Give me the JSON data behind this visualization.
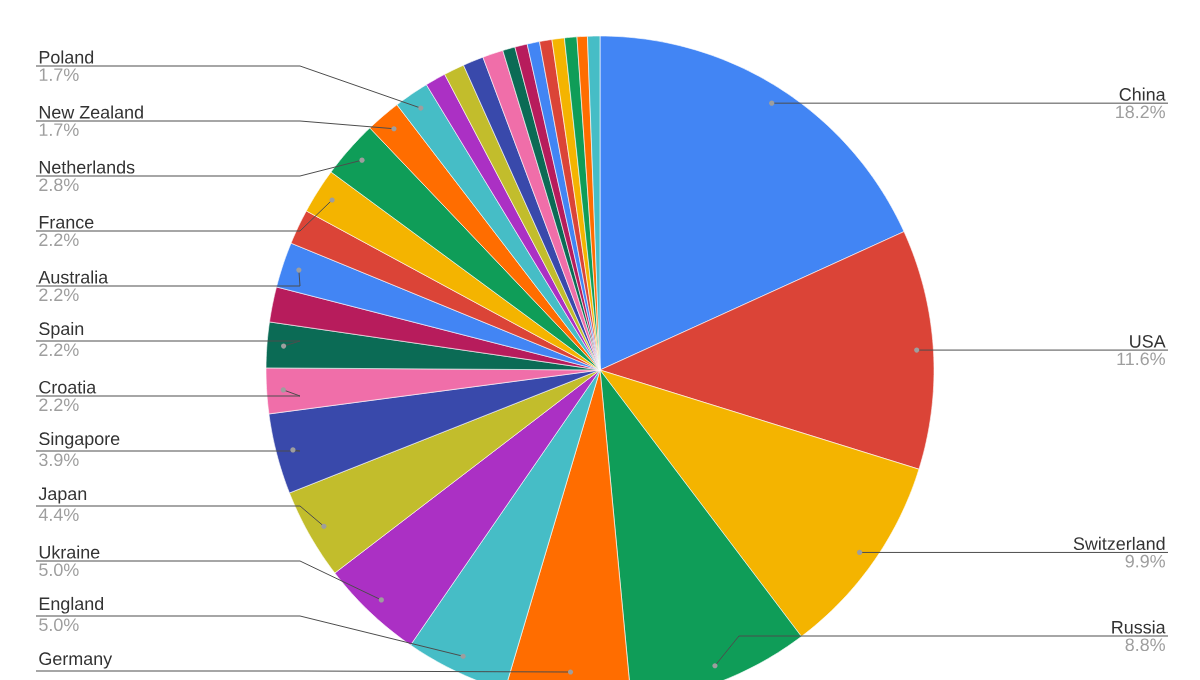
{
  "chart_data": {
    "type": "pie",
    "categories": [
      "China",
      "USA",
      "Switzerland",
      "Russia",
      "Germany",
      "England",
      "Ukraine",
      "Japan",
      "Singapore",
      "Croatia",
      "Spain",
      null,
      "Australia",
      null,
      "France",
      "Netherlands",
      "New Zealand",
      "Poland",
      null,
      null,
      null,
      null,
      null,
      null,
      null,
      null,
      null,
      null,
      null,
      null
    ],
    "values": [
      18.2,
      11.6,
      9.9,
      8.8,
      6.1,
      5.0,
      5.0,
      4.4,
      3.9,
      2.2,
      2.2,
      1.7,
      2.2,
      1.7,
      2.2,
      2.8,
      1.7,
      1.7,
      1.0,
      1.0,
      1.0,
      1.0,
      0.6,
      0.6,
      0.6,
      0.6,
      0.6,
      0.6,
      0.5,
      0.6
    ],
    "value_labels": [
      "18.2%",
      "11.6%",
      "9.9%",
      "8.8%",
      null,
      "5.0%",
      "5.0%",
      "4.4%",
      "3.9%",
      "2.2%",
      "2.2%",
      null,
      "2.2%",
      null,
      "2.2%",
      "2.8%",
      "1.7%",
      "1.7%",
      null,
      null,
      null,
      null,
      null,
      null,
      null,
      null,
      null,
      null,
      null,
      null
    ],
    "colors": [
      "#4285f4",
      "#db4437",
      "#f4b400",
      "#0f9d58",
      "#ff6d00",
      "#46bdc6",
      "#ab30c4",
      "#c2bd2c",
      "#3949ab",
      "#f06ea9",
      "#0b6b55",
      "#b71c5c",
      "#4285f4",
      "#db4437",
      "#f4b400",
      "#0f9d58",
      "#ff6d00",
      "#46bdc6",
      "#ab30c4",
      "#c2bd2c",
      "#3949ab",
      "#f06ea9",
      "#0b6b55",
      "#b71c5c",
      "#4285f4",
      "#db4437",
      "#f4b400",
      "#0f9d58",
      "#ff6d00",
      "#46bdc6"
    ]
  }
}
